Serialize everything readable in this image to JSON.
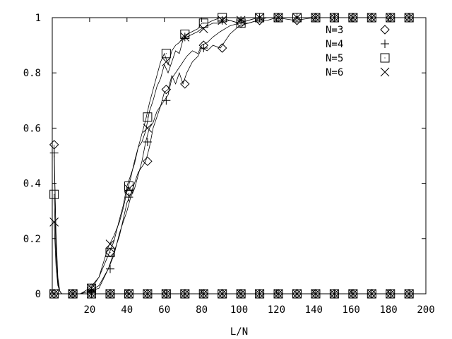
{
  "chart_data": {
    "type": "line",
    "xlabel": "L/N",
    "ylabel": "",
    "xlim": [
      0,
      200
    ],
    "ylim": [
      0,
      1
    ],
    "grid": false,
    "legend_position": "top-right",
    "x_ticks": [
      {
        "value": 20,
        "label": "20"
      },
      {
        "value": 40,
        "label": "40"
      },
      {
        "value": 60,
        "label": "60"
      },
      {
        "value": 80,
        "label": "80"
      },
      {
        "value": 100,
        "label": "100"
      },
      {
        "value": 120,
        "label": "120"
      },
      {
        "value": 140,
        "label": "140"
      },
      {
        "value": 160,
        "label": "160"
      },
      {
        "value": 180,
        "label": "180"
      },
      {
        "value": 200,
        "label": "200"
      }
    ],
    "y_ticks": [
      {
        "value": 0,
        "label": "0"
      },
      {
        "value": 0.2,
        "label": "0.2"
      },
      {
        "value": 0.4,
        "label": "0.4"
      },
      {
        "value": 0.6,
        "label": "0.6"
      },
      {
        "value": 0.8,
        "label": "0.8"
      },
      {
        "value": 1,
        "label": "1"
      }
    ],
    "series": [
      {
        "name": "N=3",
        "marker": "diamond",
        "x": [
          1,
          2,
          3,
          4,
          5,
          7,
          10,
          15,
          20,
          25,
          30,
          33,
          36,
          38,
          40,
          42,
          44,
          46,
          48,
          50,
          52,
          54,
          56,
          58,
          60,
          62,
          64,
          66,
          68,
          70,
          72,
          75,
          78,
          80,
          83,
          86,
          90,
          95,
          100,
          105,
          110,
          115,
          120,
          130,
          140,
          150,
          160,
          170,
          180,
          190
        ],
        "y": [
          0.54,
          0.2,
          0.05,
          0.01,
          0,
          0,
          0,
          0,
          0.01,
          0.02,
          0.09,
          0.15,
          0.21,
          0.27,
          0.33,
          0.36,
          0.4,
          0.44,
          0.46,
          0.48,
          0.53,
          0.6,
          0.64,
          0.68,
          0.73,
          0.74,
          0.79,
          0.76,
          0.8,
          0.76,
          0.8,
          0.84,
          0.86,
          0.89,
          0.88,
          0.9,
          0.89,
          0.94,
          0.97,
          0.98,
          0.99,
          0.99,
          1,
          0.99,
          1,
          1,
          1,
          1,
          1,
          1
        ],
        "marker_x": [
          1,
          11,
          21,
          31,
          41,
          51,
          61,
          71,
          81,
          91,
          101,
          111,
          121,
          131,
          141,
          151,
          161,
          171,
          181,
          191
        ],
        "marker_y": [
          0.54,
          0,
          0.02,
          0.15,
          0.37,
          0.48,
          0.74,
          0.76,
          0.9,
          0.89,
          0.98,
          0.99,
          1,
          0.99,
          1,
          1,
          1,
          1,
          1,
          1
        ]
      },
      {
        "name": "N=4",
        "marker": "plus",
        "x": [
          1,
          2,
          3,
          4,
          5,
          7,
          10,
          15,
          20,
          25,
          30,
          33,
          36,
          38,
          40,
          42,
          44,
          46,
          48,
          50,
          52,
          54,
          56,
          58,
          60,
          62,
          64,
          66,
          68,
          70,
          72,
          75,
          78,
          80,
          83,
          86,
          90,
          95,
          100,
          105,
          110,
          115,
          120,
          130,
          140,
          150,
          160,
          170,
          180,
          190
        ],
        "y": [
          0.5,
          0.22,
          0.06,
          0.01,
          0,
          0,
          0,
          0,
          0.01,
          0.03,
          0.09,
          0.14,
          0.22,
          0.26,
          0.3,
          0.35,
          0.38,
          0.43,
          0.48,
          0.55,
          0.6,
          0.62,
          0.66,
          0.68,
          0.7,
          0.72,
          0.78,
          0.8,
          0.82,
          0.84,
          0.86,
          0.88,
          0.87,
          0.9,
          0.91,
          0.93,
          0.95,
          0.97,
          0.98,
          0.98,
          0.99,
          1,
          1,
          1,
          1,
          1,
          1,
          1,
          1,
          1
        ],
        "marker_x": [
          1,
          11,
          21,
          31,
          41,
          51,
          61,
          71,
          81,
          91,
          101,
          111,
          121,
          131,
          141,
          151,
          161,
          171,
          181,
          191
        ],
        "marker_y": [
          0.51,
          0,
          0.01,
          0.09,
          0.35,
          0.55,
          0.7,
          0.93,
          0.89,
          0.99,
          0.99,
          1,
          1,
          1,
          1,
          1,
          1,
          1,
          1,
          1
        ]
      },
      {
        "name": "N=5",
        "marker": "square",
        "x": [
          1,
          2,
          3,
          4,
          5,
          7,
          10,
          15,
          20,
          25,
          30,
          33,
          36,
          38,
          40,
          42,
          44,
          46,
          48,
          50,
          52,
          54,
          56,
          58,
          60,
          62,
          64,
          66,
          68,
          70,
          72,
          75,
          78,
          80,
          83,
          86,
          90,
          95,
          100,
          105,
          110,
          115,
          120,
          130,
          140,
          150,
          160,
          170,
          180,
          190
        ],
        "y": [
          0.36,
          0.15,
          0.04,
          0.01,
          0,
          0,
          0,
          0,
          0.02,
          0.06,
          0.14,
          0.19,
          0.27,
          0.32,
          0.39,
          0.43,
          0.47,
          0.53,
          0.58,
          0.63,
          0.69,
          0.74,
          0.79,
          0.84,
          0.87,
          0.83,
          0.88,
          0.9,
          0.91,
          0.93,
          0.94,
          0.95,
          0.96,
          0.98,
          0.98,
          0.99,
          1,
          0.99,
          0.98,
          0.99,
          1,
          1,
          1,
          1,
          1,
          1,
          1,
          1,
          1,
          1
        ],
        "marker_x": [
          1,
          11,
          21,
          31,
          41,
          51,
          61,
          71,
          81,
          91,
          101,
          111,
          121,
          131,
          141,
          151,
          161,
          171,
          181,
          191
        ],
        "marker_y": [
          0.36,
          0,
          0.02,
          0.15,
          0.39,
          0.64,
          0.87,
          0.94,
          0.98,
          1,
          0.98,
          1,
          1,
          1,
          1,
          1,
          1,
          1,
          1,
          1
        ]
      },
      {
        "name": "N=6",
        "marker": "cross",
        "x": [
          1,
          2,
          3,
          4,
          5,
          7,
          10,
          15,
          20,
          25,
          30,
          33,
          36,
          38,
          40,
          42,
          44,
          46,
          48,
          50,
          52,
          54,
          56,
          58,
          60,
          62,
          64,
          66,
          68,
          70,
          72,
          75,
          78,
          80,
          83,
          86,
          90,
          95,
          100,
          105,
          110,
          115,
          120,
          130,
          140,
          150,
          160,
          170,
          180,
          190
        ],
        "y": [
          0.26,
          0.1,
          0.03,
          0.01,
          0,
          0,
          0,
          0,
          0.01,
          0.06,
          0.17,
          0.21,
          0.26,
          0.31,
          0.37,
          0.42,
          0.48,
          0.53,
          0.55,
          0.59,
          0.66,
          0.7,
          0.75,
          0.78,
          0.83,
          0.8,
          0.84,
          0.88,
          0.87,
          0.92,
          0.93,
          0.94,
          0.95,
          0.96,
          0.97,
          0.98,
          0.98,
          0.99,
          0.98,
          0.99,
          1,
          1,
          1,
          1,
          1,
          1,
          1,
          1,
          1,
          1
        ],
        "marker_x": [
          1,
          11,
          21,
          31,
          41,
          51,
          61,
          71,
          81,
          91,
          101,
          111,
          121,
          131,
          141,
          151,
          161,
          171,
          181,
          191
        ],
        "marker_y": [
          0.26,
          0,
          0.02,
          0.18,
          0.38,
          0.6,
          0.84,
          0.93,
          0.96,
          0.99,
          0.99,
          1,
          1,
          1,
          1,
          1,
          1,
          1,
          1,
          1
        ]
      }
    ],
    "zero_markers_x": [
      1,
      11,
      21,
      31,
      41,
      51,
      61,
      71,
      81,
      91,
      101,
      111,
      121,
      131,
      141,
      151,
      161,
      171,
      181,
      191
    ]
  }
}
